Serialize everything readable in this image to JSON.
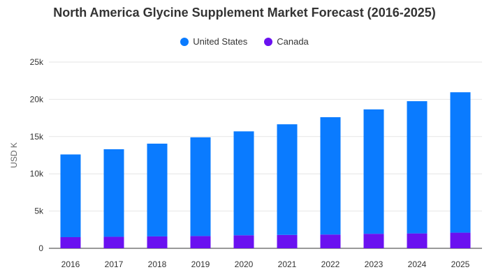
{
  "chart_data": {
    "type": "bar",
    "stacked": true,
    "title": "North America Glycine Supplement Market Forecast (2016-2025)",
    "xlabel": "",
    "ylabel": "USD K",
    "categories": [
      "2016",
      "2017",
      "2018",
      "2019",
      "2020",
      "2021",
      "2022",
      "2023",
      "2024",
      "2025"
    ],
    "series": [
      {
        "name": "Canada",
        "color": "#6a11f0",
        "values": [
          1500,
          1550,
          1600,
          1650,
          1750,
          1800,
          1850,
          1950,
          2000,
          2100
        ]
      },
      {
        "name": "United States",
        "color": "#0a7bff",
        "values": [
          11100,
          11750,
          12450,
          13250,
          13950,
          14850,
          15750,
          16700,
          17750,
          18850
        ]
      }
    ],
    "legend_order": [
      "United States",
      "Canada"
    ],
    "ylim": [
      0,
      25000
    ],
    "yticks": [
      0,
      5000,
      10000,
      15000,
      20000,
      25000
    ],
    "ytick_labels": [
      "0",
      "5k",
      "10k",
      "15k",
      "20k",
      "25k"
    ],
    "grid": true,
    "legend_position": "top-center"
  }
}
